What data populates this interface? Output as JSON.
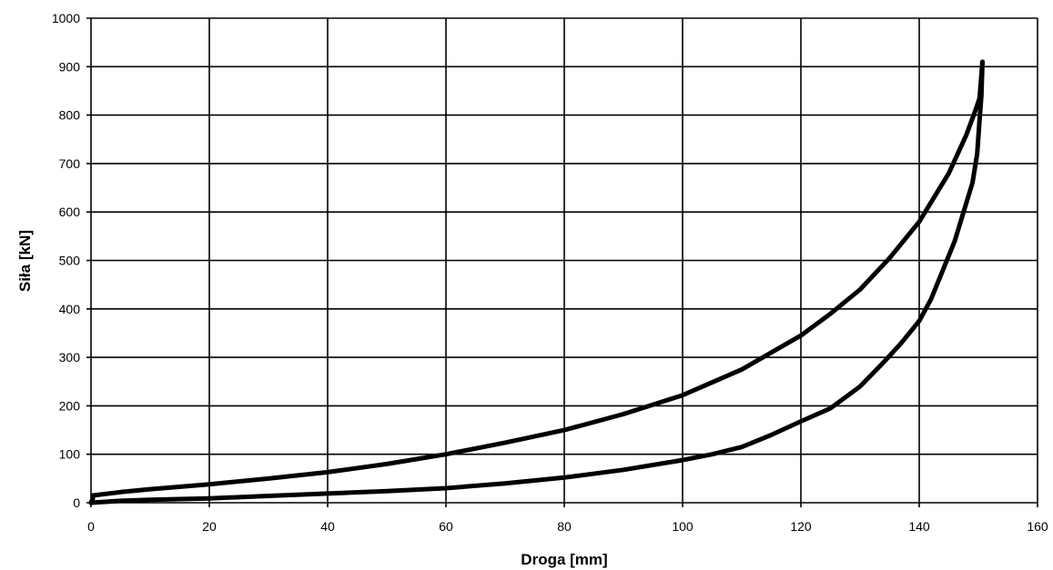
{
  "chart_data": {
    "type": "line",
    "xlabel": "Droga [mm]",
    "ylabel": "Siła  [kN]",
    "xlim": [
      0,
      160
    ],
    "ylim": [
      0,
      1000
    ],
    "xticks": [
      0,
      20,
      40,
      60,
      80,
      100,
      120,
      140,
      160
    ],
    "yticks": [
      0,
      100,
      200,
      300,
      400,
      500,
      600,
      700,
      800,
      900,
      1000
    ],
    "grid": true,
    "series": [
      {
        "x": [
          0,
          0.3,
          0.3,
          5,
          10,
          20,
          30,
          40,
          50,
          60,
          70,
          80,
          90,
          100,
          110,
          120,
          125,
          130,
          135,
          140,
          145,
          148,
          149.5,
          150.2,
          150.7
        ],
        "y": [
          0,
          8,
          15,
          22,
          28,
          38,
          50,
          63,
          80,
          100,
          124,
          150,
          183,
          222,
          275,
          345,
          390,
          440,
          505,
          580,
          680,
          760,
          810,
          835,
          910
        ]
      },
      {
        "x": [
          150.7,
          150.5,
          150.2,
          149.8,
          149,
          148,
          146,
          144,
          142,
          140,
          137,
          134,
          130,
          125,
          120,
          115,
          110,
          105,
          100,
          90,
          80,
          70,
          60,
          50,
          40,
          30,
          20,
          10,
          5,
          0
        ],
        "y": [
          910,
          840,
          790,
          720,
          660,
          620,
          540,
          480,
          420,
          375,
          330,
          290,
          240,
          195,
          168,
          140,
          115,
          100,
          88,
          68,
          52,
          40,
          30,
          24,
          19,
          14,
          9,
          6,
          4,
          0
        ]
      }
    ]
  }
}
